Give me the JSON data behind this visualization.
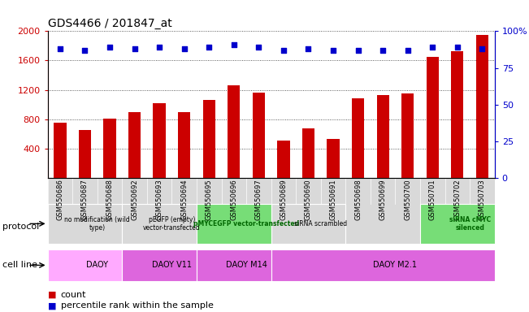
{
  "title": "GDS4466 / 201847_at",
  "samples": [
    "GSM550686",
    "GSM550687",
    "GSM550688",
    "GSM550692",
    "GSM550693",
    "GSM550694",
    "GSM550695",
    "GSM550696",
    "GSM550697",
    "GSM550689",
    "GSM550690",
    "GSM550691",
    "GSM550698",
    "GSM550699",
    "GSM550700",
    "GSM550701",
    "GSM550702",
    "GSM550703"
  ],
  "counts": [
    750,
    650,
    810,
    900,
    1020,
    900,
    1060,
    1260,
    1160,
    510,
    680,
    530,
    1080,
    1130,
    1150,
    1650,
    1730,
    1950
  ],
  "percentiles": [
    88,
    87,
    89,
    88,
    89,
    88,
    89,
    91,
    89,
    87,
    88,
    87,
    87,
    87,
    87,
    89,
    89,
    88
  ],
  "bar_color": "#cc0000",
  "dot_color": "#0000cc",
  "ylim_left": [
    0,
    2000
  ],
  "ylim_right": [
    0,
    100
  ],
  "yticks_left": [
    400,
    800,
    1200,
    1600,
    2000
  ],
  "yticks_right": [
    0,
    25,
    50,
    75,
    100
  ],
  "bg_color": "#ffffff",
  "grid_color": "#333333",
  "protocol_groups": [
    {
      "label": "no modification (wild\ntype)",
      "start": 0,
      "end": 3,
      "color": "#d9d9d9"
    },
    {
      "label": "pEGFP (empty)\nvector-transfected",
      "start": 3,
      "end": 6,
      "color": "#d9d9d9"
    },
    {
      "label": "pMYCEGFP vector-transfected",
      "start": 6,
      "end": 9,
      "color": "#77dd77"
    },
    {
      "label": "siRNA scrambled",
      "start": 9,
      "end": 12,
      "color": "#d9d9d9"
    },
    {
      "label": "siRNA cMYC\nsilenced",
      "start": 15,
      "end": 18,
      "color": "#77dd77"
    }
  ],
  "cellline_groups": [
    {
      "label": "DAOY",
      "start": 0,
      "end": 3,
      "color": "#ffaaff"
    },
    {
      "label": "DAOY V11",
      "start": 3,
      "end": 6,
      "color": "#dd66dd"
    },
    {
      "label": "DAOY M14",
      "start": 6,
      "end": 9,
      "color": "#dd66dd"
    },
    {
      "label": "DAOY M2.1",
      "start": 9,
      "end": 18,
      "color": "#dd66dd"
    }
  ],
  "protocol_label": "protocol",
  "cellline_label": "cell line",
  "legend_count": "count",
  "legend_percentile": "percentile rank within the sample"
}
